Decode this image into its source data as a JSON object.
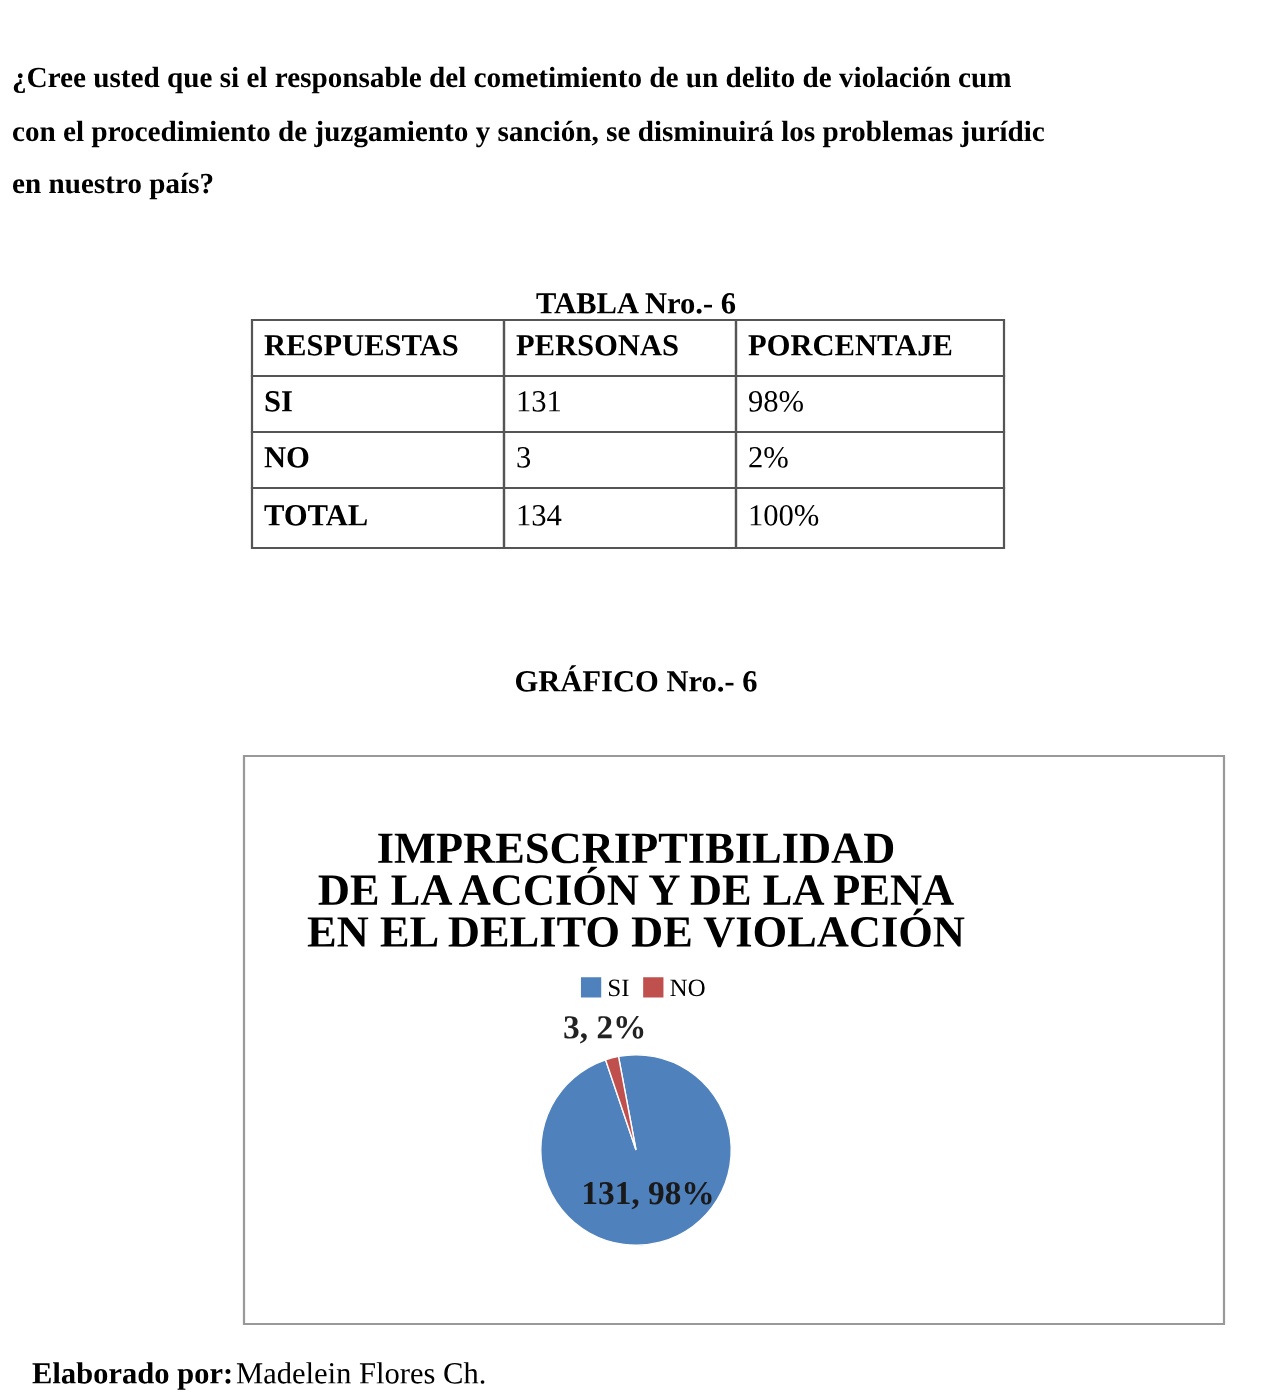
{
  "chart_data": {
    "type": "pie",
    "title": "IMPRESCRIPTIBILIDAD\nDE LA ACCIÓN Y DE LA PENA\nEN EL DELITO DE VIOLACIÓN",
    "categories": [
      "SI",
      "NO"
    ],
    "values": [
      131,
      3
    ],
    "colors": [
      "#4f81bd",
      "#c0504d"
    ],
    "value_labels": [
      "131, 98%",
      "3, 2%"
    ],
    "legend": "top",
    "annotations": [
      "¿Cree usted que si el responsable del cometimiento de un delito de violación cum",
      "con el procedimiento de juzgamiento y sanción, se disminuirá los problemas jurídic",
      "en nuestro país?",
      "TABLA Nro.- 6",
      "RESPUESTAS",
      "PERSONAS",
      "PORCENTAJE",
      "SI",
      "131",
      "98%",
      "NO",
      "3",
      "2%",
      "TOTAL",
      "134",
      "100%",
      "GRÁFICO Nro.- 6",
      "Elaborado por:",
      "Madelein Flores Ch."
    ]
  }
}
